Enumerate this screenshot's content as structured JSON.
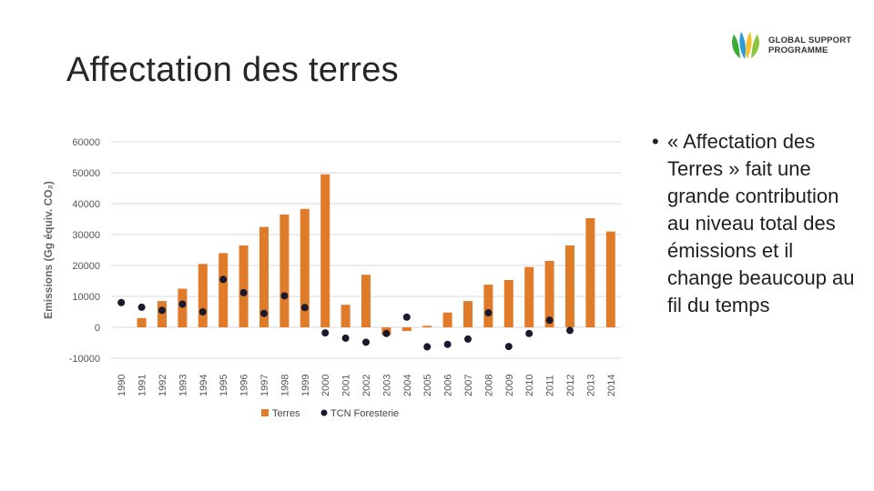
{
  "slide": {
    "title": "Affectation des terres",
    "bullet_symbol": "•",
    "bullet_text": "« Affectation des Terres » fait une grande contribution au niveau total des émissions et il change beaucoup au fil du temps"
  },
  "logo": {
    "line1": "GLOBAL SUPPORT",
    "line2": "PROGRAMME",
    "colors": [
      "#3aaa35",
      "#2e9cd6",
      "#f2c230",
      "#8cc63f"
    ]
  },
  "chart_data": {
    "type": "bar",
    "ylabel": "Emissions (Gg équiv. CO₂)",
    "ylim": [
      -10000,
      60000
    ],
    "yticks": [
      60000,
      50000,
      40000,
      30000,
      20000,
      10000,
      0,
      -10000
    ],
    "grid": true,
    "legend_position": "bottom",
    "categories": [
      "1990",
      "1991",
      "1992",
      "1993",
      "1994",
      "1995",
      "1996",
      "1997",
      "1998",
      "1999",
      "2000",
      "2001",
      "2002",
      "2003",
      "2004",
      "2005",
      "2006",
      "2007",
      "2008",
      "2009",
      "2010",
      "2011",
      "2012",
      "2013",
      "2014"
    ],
    "series": [
      {
        "name": "Terres",
        "kind": "bar",
        "color": "#e07b2a",
        "values": [
          0,
          3000,
          8500,
          12500,
          20500,
          24000,
          26500,
          32500,
          36500,
          38300,
          49500,
          7300,
          17000,
          -2500,
          -1200,
          500,
          4800,
          8500,
          13800,
          15300,
          19500,
          21500,
          26500,
          35300,
          31000
        ]
      },
      {
        "name": "TCN Foresterie",
        "kind": "point",
        "color": "#1a1a2e",
        "values": [
          8000,
          6500,
          5500,
          7500,
          5000,
          15500,
          11200,
          4500,
          10200,
          6400,
          -1800,
          -3500,
          -4800,
          -2000,
          3300,
          -6300,
          -5500,
          -3800,
          4700,
          -6200,
          -2000,
          2300,
          -1000,
          null,
          null
        ]
      }
    ]
  }
}
